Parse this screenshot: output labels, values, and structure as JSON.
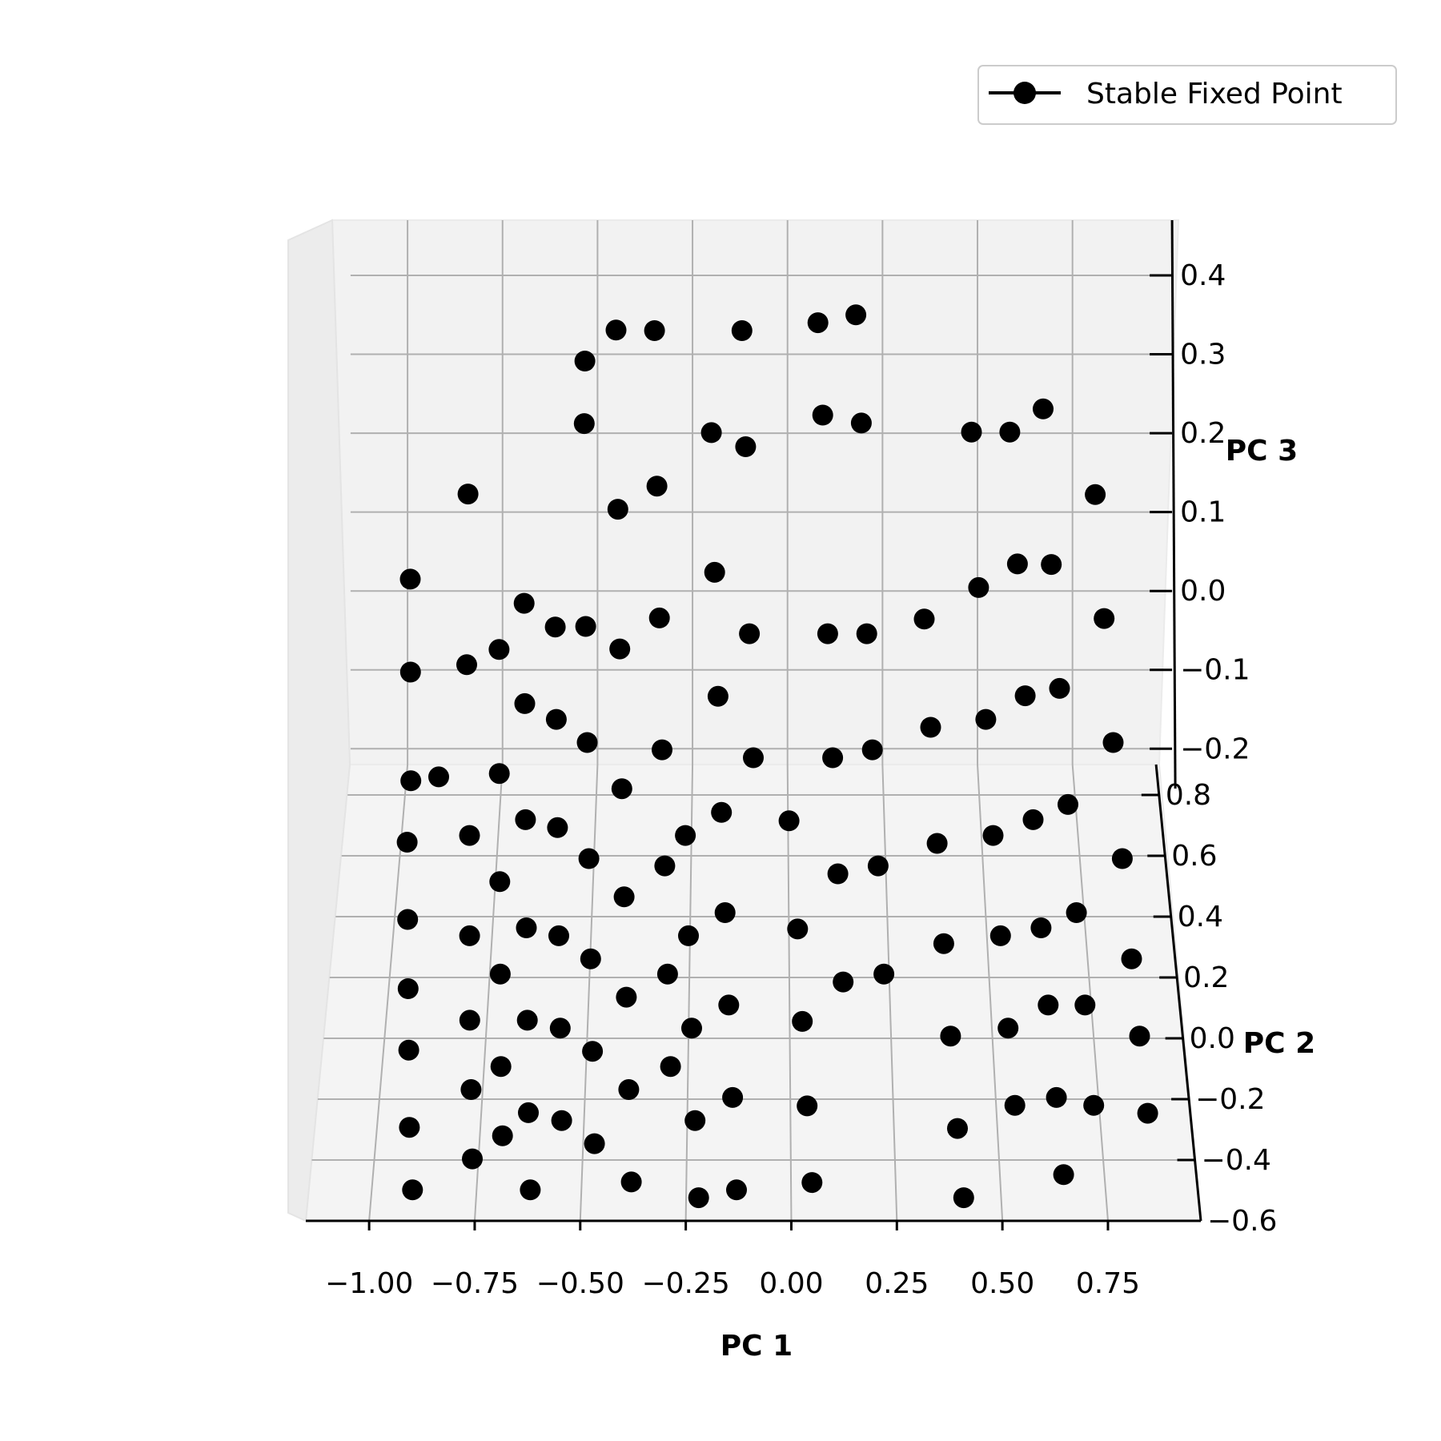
{
  "chart_data": {
    "type": "scatter",
    "projection": "3d",
    "xlabel": "PC 1",
    "ylabel": "PC 2",
    "zlabel": "PC 3",
    "xticks": [
      "−1.00",
      "−0.75",
      "−0.50",
      "−0.25",
      "0.00",
      "0.25",
      "0.50",
      "0.75"
    ],
    "yticks": [
      "−0.6",
      "−0.4",
      "−0.2",
      "0.0",
      "0.2",
      "0.4",
      "0.6",
      "0.8"
    ],
    "zticks": [
      "−0.2",
      "−0.1",
      "0.0",
      "0.1",
      "0.2",
      "0.3",
      "0.4"
    ],
    "xlim": [
      -1.15,
      0.97
    ],
    "ylim": [
      -0.6,
      0.9
    ],
    "zlim": [
      -0.22,
      0.47
    ],
    "grid": true,
    "legend": {
      "position": "top-right",
      "entries": [
        "Stable Fixed Point"
      ]
    },
    "marker_color": "#000000",
    "series": [
      {
        "name": "Stable Fixed Point",
        "points": [
          [
            -0.97,
            0.55,
            0.15
          ],
          [
            -0.96,
            0.4,
            0.09
          ],
          [
            -0.95,
            0.25,
            0.01
          ],
          [
            -0.95,
            0.1,
            -0.01
          ],
          [
            -0.94,
            -0.05,
            -0.05
          ],
          [
            -0.93,
            -0.2,
            -0.08
          ],
          [
            -0.92,
            -0.35,
            -0.1
          ],
          [
            -0.91,
            -0.5,
            -0.14
          ],
          [
            -0.9,
            -0.55,
            -0.2
          ],
          [
            -0.9,
            0.6,
            -0.12
          ],
          [
            -0.83,
            0.7,
            0.2
          ],
          [
            -0.82,
            0.45,
            0.08
          ],
          [
            -0.8,
            0.2,
            -0.04
          ],
          [
            -0.79,
            0.0,
            -0.09
          ],
          [
            -0.78,
            -0.2,
            -0.12
          ],
          [
            -0.77,
            -0.35,
            -0.15
          ],
          [
            -0.76,
            -0.5,
            -0.18
          ],
          [
            -0.74,
            0.5,
            0.08
          ],
          [
            -0.73,
            0.3,
            0.0
          ],
          [
            -0.72,
            0.1,
            -0.06
          ],
          [
            -0.71,
            -0.1,
            -0.1
          ],
          [
            -0.7,
            -0.3,
            -0.14
          ],
          [
            -0.69,
            -0.45,
            -0.17
          ],
          [
            -0.68,
            0.6,
            0.1
          ],
          [
            -0.67,
            0.4,
            0.05
          ],
          [
            -0.66,
            0.2,
            -0.02
          ],
          [
            -0.65,
            0.0,
            -0.08
          ],
          [
            -0.64,
            -0.2,
            -0.12
          ],
          [
            -0.63,
            -0.4,
            -0.16
          ],
          [
            -0.62,
            -0.55,
            -0.2
          ],
          [
            -0.6,
            0.6,
            0.07
          ],
          [
            -0.59,
            0.4,
            0.03
          ],
          [
            -0.58,
            0.2,
            -0.03
          ],
          [
            -0.57,
            0.0,
            -0.09
          ],
          [
            -0.56,
            -0.2,
            -0.13
          ],
          [
            -0.55,
            -0.4,
            -0.17
          ],
          [
            -0.53,
            0.8,
            0.33
          ],
          [
            -0.53,
            0.75,
            0.27
          ],
          [
            -0.52,
            0.55,
            0.09
          ],
          [
            -0.51,
            0.35,
            0.02
          ],
          [
            -0.5,
            0.15,
            -0.05
          ],
          [
            -0.49,
            -0.05,
            -0.1
          ],
          [
            -0.48,
            -0.25,
            -0.14
          ],
          [
            -0.47,
            -0.45,
            -0.18
          ],
          [
            -0.45,
            0.85,
            0.35
          ],
          [
            -0.44,
            0.65,
            0.2
          ],
          [
            -0.43,
            0.45,
            0.1
          ],
          [
            -0.42,
            0.25,
            0.0
          ],
          [
            -0.41,
            0.05,
            -0.06
          ],
          [
            -0.4,
            -0.15,
            -0.11
          ],
          [
            -0.39,
            -0.35,
            -0.15
          ],
          [
            -0.38,
            -0.55,
            -0.19
          ],
          [
            -0.35,
            0.9,
            0.33
          ],
          [
            -0.34,
            0.7,
            0.21
          ],
          [
            -0.33,
            0.5,
            0.12
          ],
          [
            -0.32,
            0.3,
            0.03
          ],
          [
            -0.31,
            0.1,
            -0.04
          ],
          [
            -0.3,
            -0.1,
            -0.1
          ],
          [
            -0.29,
            -0.3,
            -0.14
          ],
          [
            -0.26,
            0.2,
            -0.04
          ],
          [
            -0.25,
            0.0,
            -0.09
          ],
          [
            -0.24,
            -0.2,
            -0.13
          ],
          [
            -0.23,
            -0.4,
            -0.17
          ],
          [
            -0.22,
            -0.55,
            -0.21
          ],
          [
            -0.2,
            0.85,
            0.22
          ],
          [
            -0.19,
            0.65,
            0.12
          ],
          [
            -0.18,
            0.45,
            0.04
          ],
          [
            -0.17,
            0.25,
            -0.03
          ],
          [
            -0.16,
            0.05,
            -0.08
          ],
          [
            -0.15,
            -0.15,
            -0.12
          ],
          [
            -0.14,
            -0.35,
            -0.16
          ],
          [
            -0.13,
            -0.55,
            -0.2
          ],
          [
            -0.12,
            0.9,
            0.33
          ],
          [
            -0.11,
            0.7,
            0.26
          ],
          [
            -0.1,
            0.5,
            0.1
          ],
          [
            -0.09,
            0.3,
            0.02
          ],
          [
            0.0,
            0.3,
            -0.06
          ],
          [
            0.02,
            0.1,
            -0.12
          ],
          [
            0.03,
            -0.1,
            -0.16
          ],
          [
            0.04,
            -0.3,
            -0.19
          ],
          [
            0.05,
            -0.5,
            -0.21
          ],
          [
            0.08,
            0.9,
            0.34
          ],
          [
            0.09,
            0.7,
            0.3
          ],
          [
            0.1,
            0.5,
            0.1
          ],
          [
            0.11,
            0.3,
            0.02
          ],
          [
            0.12,
            0.1,
            -0.05
          ],
          [
            0.13,
            -0.1,
            -0.11
          ],
          [
            0.18,
            0.9,
            0.35
          ],
          [
            0.19,
            0.7,
            0.29
          ],
          [
            0.2,
            0.5,
            0.1
          ],
          [
            0.21,
            0.3,
            0.03
          ],
          [
            0.22,
            0.1,
            -0.04
          ],
          [
            0.23,
            -0.1,
            -0.1
          ],
          [
            0.35,
            0.6,
            0.08
          ],
          [
            0.36,
            0.4,
            0.02
          ],
          [
            0.37,
            0.2,
            -0.05
          ],
          [
            0.38,
            0.0,
            -0.1
          ],
          [
            0.39,
            -0.2,
            -0.14
          ],
          [
            0.4,
            -0.4,
            -0.18
          ],
          [
            0.41,
            -0.55,
            -0.21
          ],
          [
            0.48,
            0.8,
            0.24
          ],
          [
            0.49,
            0.6,
            0.12
          ],
          [
            0.5,
            0.4,
            0.03
          ],
          [
            0.51,
            0.2,
            -0.04
          ],
          [
            0.52,
            0.0,
            -0.09
          ],
          [
            0.53,
            -0.2,
            -0.13
          ],
          [
            0.54,
            -0.35,
            -0.17
          ],
          [
            0.58,
            0.8,
            0.24
          ],
          [
            0.59,
            0.6,
            0.15
          ],
          [
            0.6,
            0.4,
            0.06
          ],
          [
            0.61,
            0.2,
            -0.02
          ],
          [
            0.62,
            0.0,
            -0.08
          ],
          [
            0.63,
            -0.15,
            -0.12
          ],
          [
            0.64,
            -0.35,
            -0.16
          ],
          [
            0.65,
            -0.5,
            -0.2
          ],
          [
            0.67,
            0.85,
            0.25
          ],
          [
            0.68,
            0.65,
            0.13
          ],
          [
            0.69,
            0.45,
            0.05
          ],
          [
            0.7,
            0.25,
            -0.02
          ],
          [
            0.71,
            0.05,
            -0.08
          ],
          [
            0.72,
            -0.15,
            -0.12
          ],
          [
            0.73,
            -0.35,
            -0.17
          ],
          [
            0.8,
            0.75,
            0.18
          ],
          [
            0.81,
            0.55,
            0.1
          ],
          [
            0.82,
            0.35,
            0.02
          ],
          [
            0.83,
            0.15,
            -0.05
          ],
          [
            0.84,
            -0.05,
            -0.1
          ],
          [
            0.85,
            -0.2,
            -0.14
          ],
          [
            0.86,
            -0.35,
            -0.18
          ]
        ]
      }
    ]
  }
}
